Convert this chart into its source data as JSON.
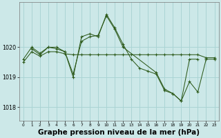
{
  "background_color": "#cce8e8",
  "plot_bg_color": "#cce8e8",
  "line_color": "#2d5a1b",
  "grid_color": "#aad4d4",
  "xlabel": "Graphe pression niveau de la mer (hPa)",
  "xlabel_fontsize": 7.5,
  "ylabel_ticks": [
    1018,
    1019,
    1020
  ],
  "xlim": [
    -0.5,
    23.5
  ],
  "ylim": [
    1017.55,
    1021.5
  ],
  "xticks": [
    0,
    1,
    2,
    3,
    4,
    5,
    6,
    7,
    8,
    9,
    10,
    11,
    12,
    13,
    14,
    15,
    16,
    17,
    18,
    19,
    20,
    21,
    22,
    23
  ],
  "series": [
    {
      "x": [
        0,
        1,
        2,
        3,
        4,
        5,
        6,
        7,
        8,
        9,
        10,
        11,
        12,
        13,
        14,
        15,
        16,
        17,
        18,
        19,
        20,
        21
      ],
      "y": [
        1019.6,
        1020.0,
        1019.8,
        1020.0,
        1020.0,
        1019.85,
        1019.0,
        1020.35,
        1020.45,
        1020.35,
        1021.1,
        1020.65,
        1020.1,
        1019.6,
        1019.3,
        1019.2,
        1019.1,
        1018.55,
        1018.45,
        1018.2,
        1019.6,
        1019.6
      ]
    },
    {
      "x": [
        0,
        1,
        2,
        3,
        4,
        5,
        6,
        7,
        8,
        9,
        10,
        11,
        12,
        13,
        14,
        15,
        16,
        17,
        18,
        19,
        20,
        21,
        22,
        23
      ],
      "y": [
        1019.5,
        1019.85,
        1019.7,
        1019.85,
        1019.85,
        1019.78,
        1019.75,
        1019.75,
        1019.75,
        1019.75,
        1019.75,
        1019.75,
        1019.75,
        1019.75,
        1019.75,
        1019.75,
        1019.75,
        1019.75,
        1019.75,
        1019.75,
        1019.75,
        1019.75,
        1019.65,
        1019.65
      ]
    },
    {
      "x": [
        1,
        2,
        3,
        4,
        5,
        6,
        7,
        8,
        9,
        10,
        11,
        12,
        16,
        17,
        18,
        19,
        20,
        21,
        22,
        23
      ],
      "y": [
        1019.95,
        1019.75,
        1020.0,
        1019.95,
        1019.85,
        1019.1,
        1020.2,
        1020.35,
        1020.4,
        1021.05,
        1020.6,
        1020.0,
        1019.15,
        1018.6,
        1018.45,
        1018.2,
        1018.85,
        1018.5,
        1019.6,
        1019.6
      ]
    }
  ]
}
